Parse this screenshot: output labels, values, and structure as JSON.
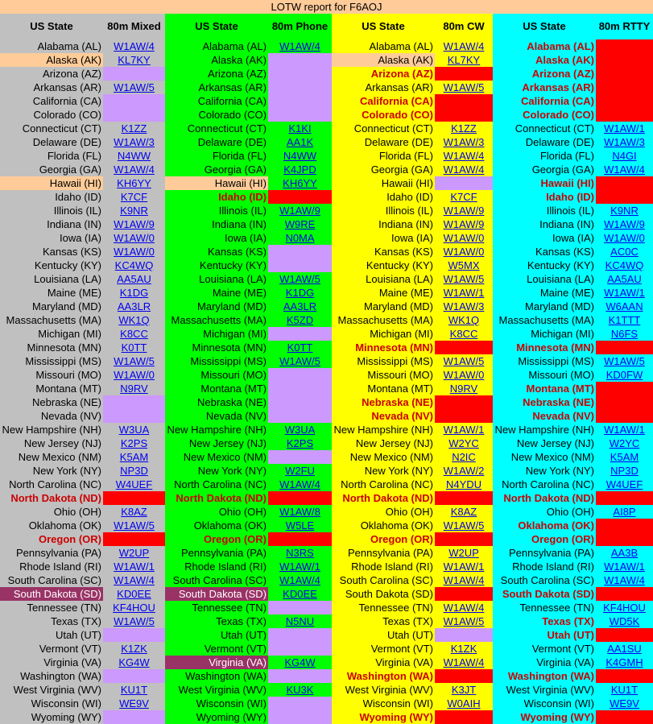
{
  "title": "LOTW report for F6AOJ",
  "state_header": "US State",
  "states": [
    "Alabama (AL)",
    "Alaska (AK)",
    "Arizona (AZ)",
    "Arkansas (AR)",
    "California (CA)",
    "Colorado (CO)",
    "Connecticut (CT)",
    "Delaware (DE)",
    "Florida (FL)",
    "Georgia (GA)",
    "Hawaii (HI)",
    "Idaho (ID)",
    "Illinois (IL)",
    "Indiana (IN)",
    "Iowa (IA)",
    "Kansas (KS)",
    "Kentucky (KY)",
    "Louisiana (LA)",
    "Maine (ME)",
    "Maryland (MD)",
    "Massachusetts (MA)",
    "Michigan (MI)",
    "Minnesota (MN)",
    "Mississippi (MS)",
    "Missouri (MO)",
    "Montana (MT)",
    "Nebraska (NE)",
    "Nevada (NV)",
    "New Hampshire (NH)",
    "New Jersey (NJ)",
    "New Mexico (NM)",
    "New York (NY)",
    "North Carolina (NC)",
    "North Dakota (ND)",
    "Ohio (OH)",
    "Oklahoma (OK)",
    "Oregon (OR)",
    "Pennsylvania (PA)",
    "Rhode Island (RI)",
    "South Carolina (SC)",
    "South Dakota (SD)",
    "Tennessee (TN)",
    "Texas (TX)",
    "Utah (UT)",
    "Vermont (VT)",
    "Virginia (VA)",
    "Washington (WA)",
    "West Virginia (WV)",
    "Wisconsin (WI)",
    "Wyoming (WY)"
  ],
  "columns": [
    {
      "header": "80m Mixed",
      "bg": "#c0c0c0",
      "rows": [
        {
          "call": "W1AW/4"
        },
        {
          "call": "KL7KY",
          "state_fill": "#ffcc99"
        },
        {
          "fill": "#cc99ff"
        },
        {
          "call": "W1AW/5"
        },
        {
          "fill": "#cc99ff"
        },
        {
          "fill": "#cc99ff"
        },
        {
          "call": "K1ZZ"
        },
        {
          "call": "W1AW/3"
        },
        {
          "call": "N4WW"
        },
        {
          "call": "W1AW/4"
        },
        {
          "call": "KH6YY",
          "state_fill": "#ffcc99"
        },
        {
          "call": "K7CF"
        },
        {
          "call": "K9NR"
        },
        {
          "call": "W1AW/9"
        },
        {
          "call": "W1AW/0"
        },
        {
          "call": "W1AW/0"
        },
        {
          "call": "KC4WQ"
        },
        {
          "call": "AA5AU"
        },
        {
          "call": "K1DG"
        },
        {
          "call": "AA3LR"
        },
        {
          "call": "WK1Q"
        },
        {
          "call": "K8CC"
        },
        {
          "call": "K0TT"
        },
        {
          "call": "W1AW/5"
        },
        {
          "call": "W1AW/0"
        },
        {
          "call": "N9RV"
        },
        {
          "fill": "#cc99ff"
        },
        {
          "fill": "#cc99ff"
        },
        {
          "call": "W3UA"
        },
        {
          "call": "K2PS"
        },
        {
          "call": "K5AM"
        },
        {
          "call": "NP3D"
        },
        {
          "call": "W4UEF"
        },
        {
          "fill": "#ff0000",
          "state_color": "#cc0000"
        },
        {
          "call": "K8AZ"
        },
        {
          "call": "W1AW/5"
        },
        {
          "fill": "#ff0000",
          "state_color": "#cc0000"
        },
        {
          "call": "W2UP"
        },
        {
          "call": "W1AW/1"
        },
        {
          "call": "W1AW/4"
        },
        {
          "call": "KD0EE",
          "state_fill": "#993366",
          "state_color": "#ffffff"
        },
        {
          "call": "KF4HOU"
        },
        {
          "call": "W1AW/5"
        },
        {
          "fill": "#cc99ff"
        },
        {
          "call": "K1ZK"
        },
        {
          "call": "KG4W"
        },
        {
          "fill": "#cc99ff"
        },
        {
          "call": "KU1T"
        },
        {
          "call": "WE9V"
        },
        {
          "fill": "#cc99ff"
        }
      ]
    },
    {
      "header": "80m Phone",
      "bg": "#00ff00",
      "rows": [
        {
          "call": "W1AW/4"
        },
        {
          "fill": "#cc99ff"
        },
        {
          "fill": "#cc99ff"
        },
        {
          "fill": "#cc99ff"
        },
        {
          "fill": "#cc99ff"
        },
        {
          "fill": "#cc99ff"
        },
        {
          "call": "K1KI"
        },
        {
          "call": "AA1K"
        },
        {
          "call": "N4WW"
        },
        {
          "call": "K4JPD"
        },
        {
          "call": "KH6YY",
          "state_fill": "#ffcc99"
        },
        {
          "fill": "#ff0000",
          "state_color": "#cc0000"
        },
        {
          "call": "W1AW/9"
        },
        {
          "call": "W9RE"
        },
        {
          "call": "N0MA"
        },
        {
          "fill": "#cc99ff"
        },
        {
          "fill": "#cc99ff"
        },
        {
          "call": "W1AW/5"
        },
        {
          "call": "K1DG"
        },
        {
          "call": "AA3LR"
        },
        {
          "call": "K5ZD"
        },
        {
          "fill": "#cc99ff"
        },
        {
          "call": "K0TT"
        },
        {
          "call": "W1AW/5"
        },
        {
          "fill": "#cc99ff"
        },
        {
          "fill": "#cc99ff"
        },
        {
          "fill": "#cc99ff"
        },
        {
          "fill": "#cc99ff"
        },
        {
          "call": "W3UA"
        },
        {
          "call": "K2PS"
        },
        {
          "fill": "#cc99ff"
        },
        {
          "call": "W2FU"
        },
        {
          "call": "W1AW/4"
        },
        {
          "fill": "#ff0000",
          "state_color": "#cc0000"
        },
        {
          "call": "W1AW/8"
        },
        {
          "call": "W5LE"
        },
        {
          "fill": "#ff0000",
          "state_color": "#cc0000"
        },
        {
          "call": "N3RS"
        },
        {
          "call": "W1AW/1"
        },
        {
          "call": "W1AW/4"
        },
        {
          "call": "KD0EE",
          "state_fill": "#993366",
          "state_color": "#ffffff"
        },
        {
          "fill": "#cc99ff"
        },
        {
          "call": "N5NU"
        },
        {
          "fill": "#cc99ff"
        },
        {
          "fill": "#cc99ff"
        },
        {
          "call": "KG4W",
          "state_fill": "#993366",
          "state_color": "#ffffff"
        },
        {
          "fill": "#cc99ff"
        },
        {
          "call": "KU3K"
        },
        {
          "fill": "#cc99ff"
        },
        {
          "fill": "#cc99ff"
        }
      ]
    },
    {
      "header": "80m CW",
      "bg": "#ffff00",
      "rows": [
        {
          "call": "W1AW/4"
        },
        {
          "call": "KL7KY",
          "state_fill": "#ffcc99"
        },
        {
          "fill": "#ff0000",
          "state_color": "#cc0000"
        },
        {
          "call": "W1AW/5"
        },
        {
          "fill": "#ff0000",
          "state_color": "#cc0000"
        },
        {
          "fill": "#ff0000",
          "state_color": "#cc0000"
        },
        {
          "call": "K1ZZ"
        },
        {
          "call": "W1AW/3"
        },
        {
          "call": "W1AW/4"
        },
        {
          "call": "W1AW/4"
        },
        {
          "fill": "#cc99ff"
        },
        {
          "call": "K7CF"
        },
        {
          "call": "W1AW/9"
        },
        {
          "call": "W1AW/9"
        },
        {
          "call": "W1AW/0"
        },
        {
          "call": "W1AW/0"
        },
        {
          "call": "W5MX"
        },
        {
          "call": "W1AW/5"
        },
        {
          "call": "W1AW/1"
        },
        {
          "call": "W1AW/3"
        },
        {
          "call": "WK1Q"
        },
        {
          "call": "K8CC"
        },
        {
          "fill": "#ff0000",
          "state_color": "#cc0000"
        },
        {
          "call": "W1AW/5"
        },
        {
          "call": "W1AW/0"
        },
        {
          "call": "N9RV"
        },
        {
          "fill": "#ff0000",
          "state_color": "#cc0000"
        },
        {
          "fill": "#ff0000",
          "state_color": "#cc0000"
        },
        {
          "call": "W1AW/1"
        },
        {
          "call": "W2YC"
        },
        {
          "call": "N2IC"
        },
        {
          "call": "W1AW/2"
        },
        {
          "call": "N4YDU"
        },
        {
          "fill": "#ff0000",
          "state_color": "#cc0000"
        },
        {
          "call": "K8AZ"
        },
        {
          "call": "W1AW/5"
        },
        {
          "fill": "#ff0000",
          "state_color": "#cc0000"
        },
        {
          "call": "W2UP"
        },
        {
          "call": "W1AW/1"
        },
        {
          "call": "W1AW/4"
        },
        {
          "fill": "#ff0000"
        },
        {
          "call": "W1AW/4"
        },
        {
          "call": "W1AW/5"
        },
        {
          "fill": "#cc99ff"
        },
        {
          "call": "K1ZK"
        },
        {
          "call": "W1AW/4"
        },
        {
          "fill": "#ff0000",
          "state_color": "#cc0000"
        },
        {
          "call": "K3JT"
        },
        {
          "call": "W0AIH"
        },
        {
          "fill": "#ff0000",
          "state_color": "#cc0000"
        }
      ]
    },
    {
      "header": "80m RTTY",
      "bg": "#00ffff",
      "rows": [
        {
          "fill": "#ff0000",
          "state_color": "#cc0000"
        },
        {
          "fill": "#ff0000",
          "state_color": "#cc0000"
        },
        {
          "fill": "#ff0000",
          "state_color": "#cc0000"
        },
        {
          "fill": "#ff0000",
          "state_color": "#cc0000"
        },
        {
          "fill": "#ff0000",
          "state_color": "#cc0000"
        },
        {
          "fill": "#ff0000",
          "state_color": "#cc0000"
        },
        {
          "call": "W1AW/1"
        },
        {
          "call": "W1AW/3"
        },
        {
          "call": "N4GI"
        },
        {
          "call": "W1AW/4"
        },
        {
          "fill": "#ff0000",
          "state_color": "#cc0000"
        },
        {
          "fill": "#ff0000",
          "state_color": "#cc0000"
        },
        {
          "call": "K9NR"
        },
        {
          "call": "W1AW/9"
        },
        {
          "call": "W1AW/0"
        },
        {
          "call": "AC0C"
        },
        {
          "call": "KC4WQ"
        },
        {
          "call": "AA5AU"
        },
        {
          "call": "W1AW/1"
        },
        {
          "call": "W6AAN"
        },
        {
          "call": "K1TTT"
        },
        {
          "call": "N6FS"
        },
        {
          "fill": "#ff0000",
          "state_color": "#cc0000"
        },
        {
          "call": "W1AW/5"
        },
        {
          "call": "KD0FW"
        },
        {
          "fill": "#ff0000",
          "state_color": "#cc0000"
        },
        {
          "fill": "#ff0000",
          "state_color": "#cc0000"
        },
        {
          "fill": "#ff0000",
          "state_color": "#cc0000"
        },
        {
          "call": "W1AW/1"
        },
        {
          "call": "W2YC"
        },
        {
          "call": "K5AM"
        },
        {
          "call": "NP3D"
        },
        {
          "call": "W4UEF"
        },
        {
          "fill": "#ff0000",
          "state_color": "#cc0000"
        },
        {
          "call": "AI8P"
        },
        {
          "fill": "#ff0000",
          "state_color": "#cc0000"
        },
        {
          "fill": "#ff0000",
          "state_color": "#cc0000"
        },
        {
          "call": "AA3B"
        },
        {
          "call": "W1AW/1"
        },
        {
          "call": "W1AW/4"
        },
        {
          "fill": "#ff0000",
          "state_color": "#cc0000"
        },
        {
          "call": "KF4HOU"
        },
        {
          "call": "WD5K",
          "state_color": "#cc0000"
        },
        {
          "fill": "#ff0000",
          "state_color": "#cc0000"
        },
        {
          "call": "AA1SU"
        },
        {
          "call": "K4GMH"
        },
        {
          "fill": "#ff0000",
          "state_color": "#cc0000"
        },
        {
          "call": "KU1T"
        },
        {
          "call": "WE9V"
        },
        {
          "fill": "#ff0000",
          "state_color": "#cc0000"
        }
      ]
    }
  ]
}
